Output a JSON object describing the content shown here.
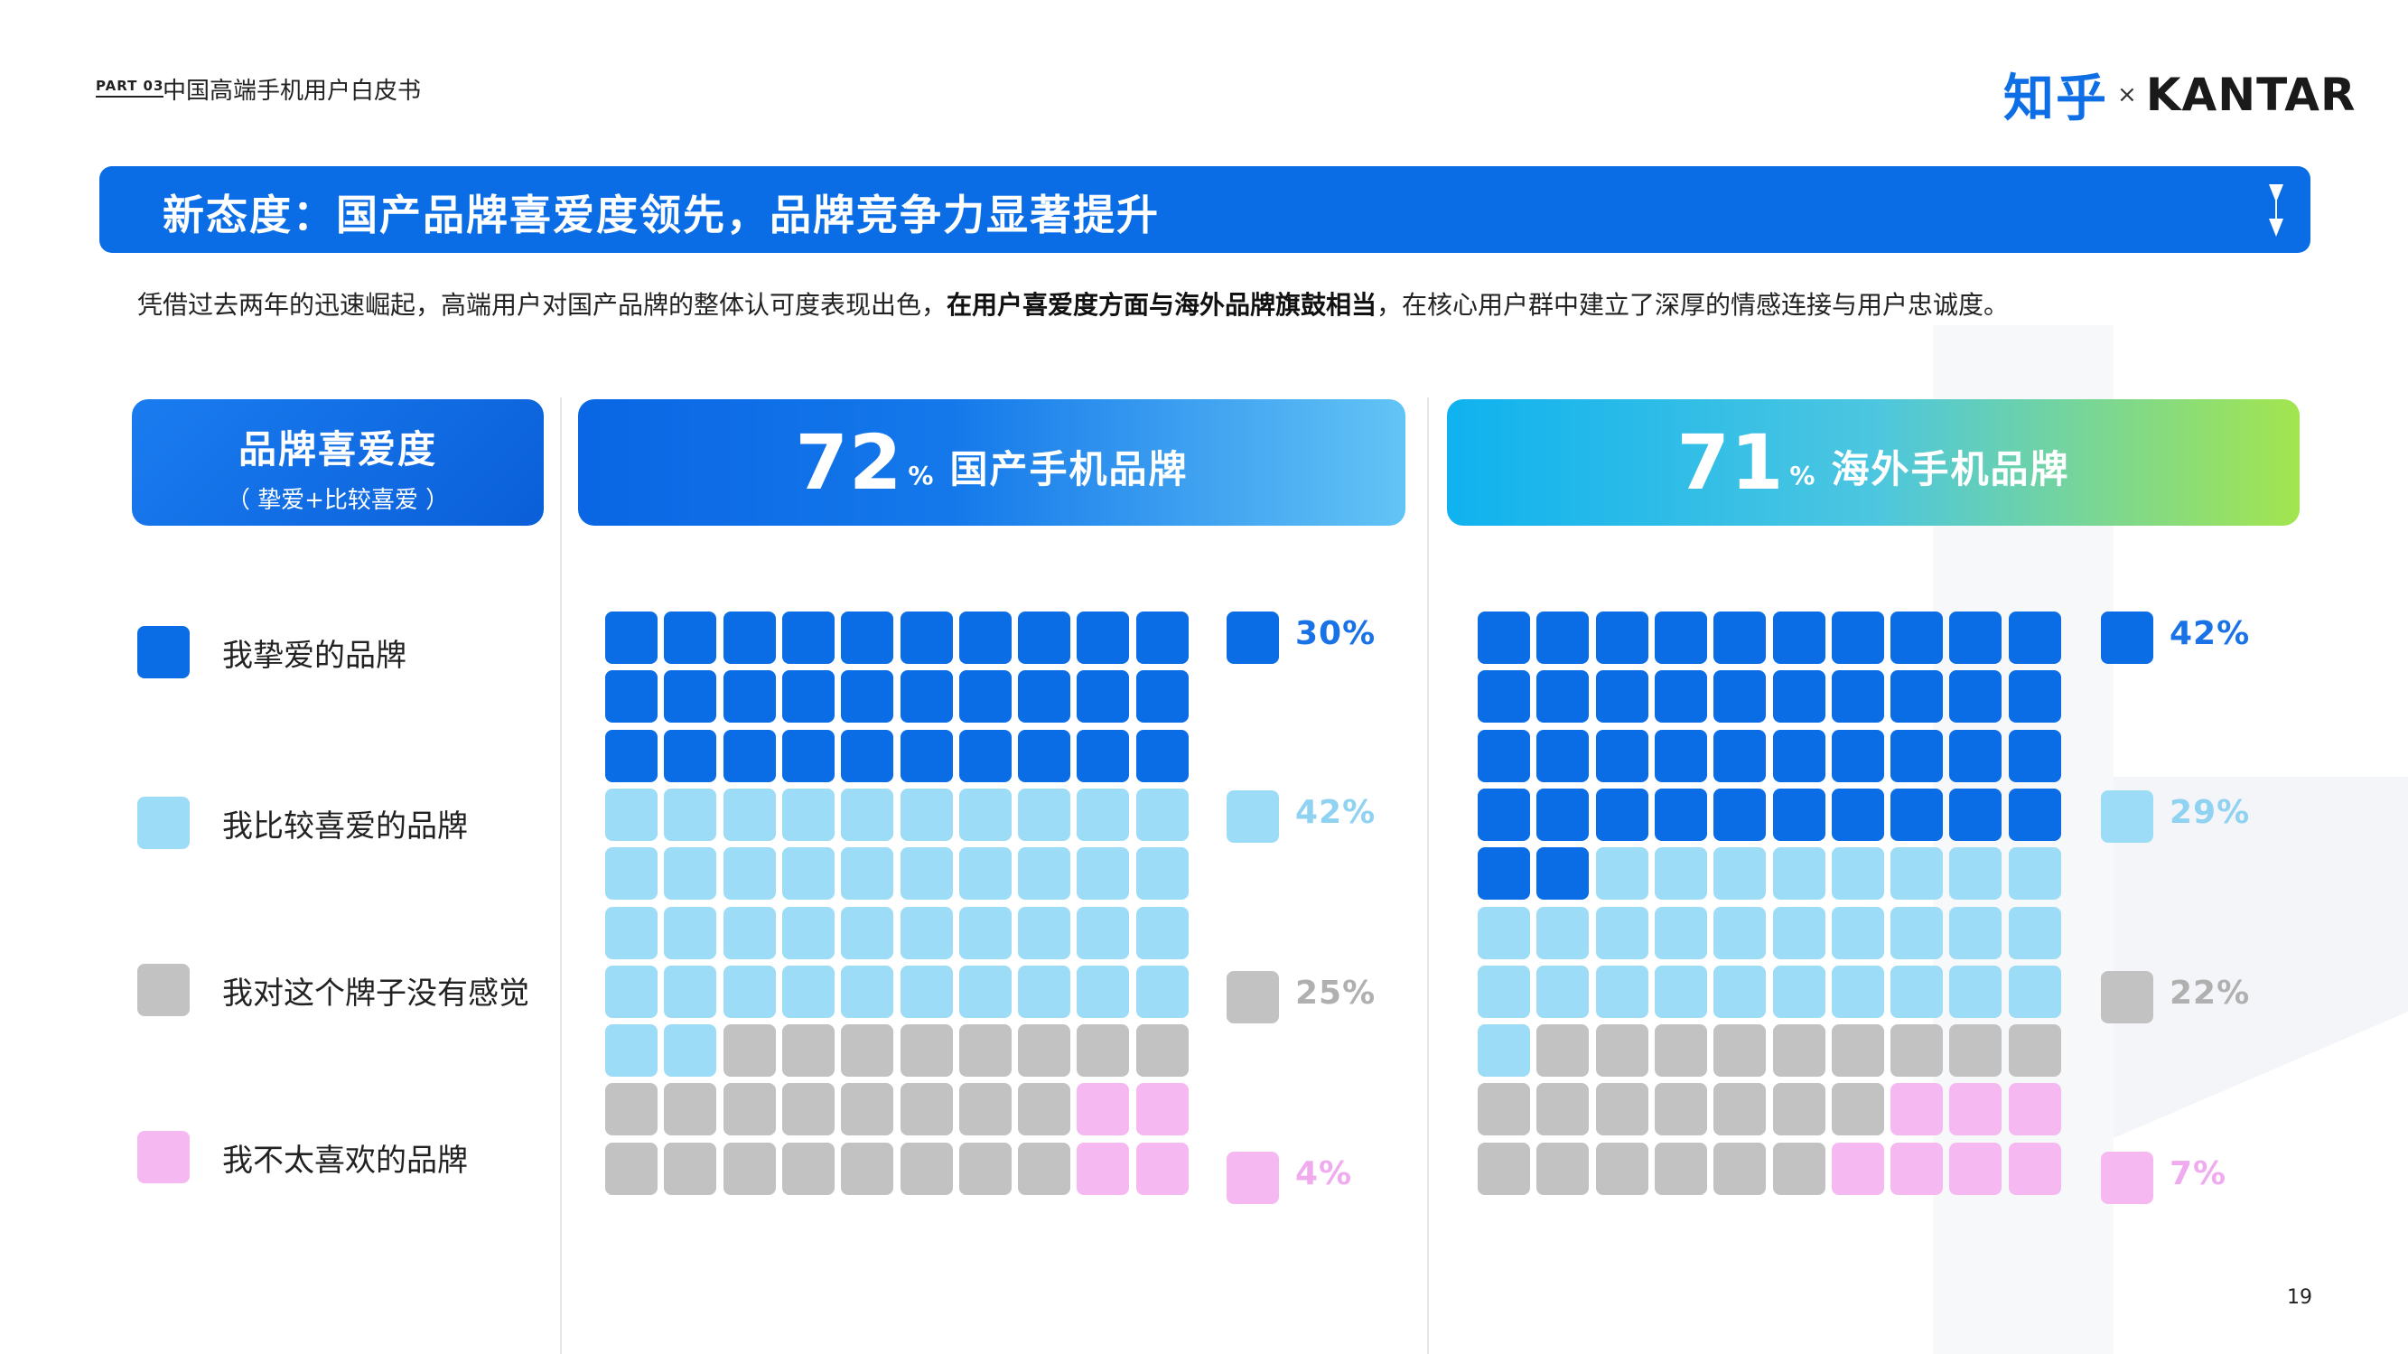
{
  "header": {
    "part": "PART 03",
    "report_name": "中国高端手机用户白皮书",
    "logo_zh": "知乎",
    "logo_x": "×",
    "logo_en": "KANTAR"
  },
  "title": "新态度：国产品牌喜爱度领先，品牌竞争力显著提升",
  "subtitle": {
    "before": "凭借过去两年的迅速崛起，高端用户对国产品牌的整体认可度表现出色，",
    "bold": "在用户喜爱度方面与海外品牌旗鼓相当",
    "after": "，在核心用户群中建立了深厚的情感连接与用户忠诚度。"
  },
  "legend": {
    "title": "品牌喜爱度",
    "subtitle": "（ 挚爱+比较喜爱 ）",
    "items": [
      {
        "label": "我挚爱的品牌",
        "color": "#0a6de6"
      },
      {
        "label": "我比较喜爱的品牌",
        "color": "#9ddcf7"
      },
      {
        "label": "我对这个牌子没有感觉",
        "color": "#c2c2c2"
      },
      {
        "label": "我不太喜欢的品牌",
        "color": "#f6b8f1"
      }
    ]
  },
  "chart_data": [
    {
      "type": "waffle",
      "title": "国产手机品牌",
      "headline_value": 72,
      "headline_unit": "%",
      "grid": {
        "rows": 10,
        "cols": 10
      },
      "categories": [
        "我挚爱的品牌",
        "我比较喜爱的品牌",
        "我对这个牌子没有感觉",
        "我不太喜欢的品牌"
      ],
      "values": [
        30,
        42,
        25,
        4
      ],
      "labels": [
        "30%",
        "42%",
        "25%",
        "4%"
      ]
    },
    {
      "type": "waffle",
      "title": "海外手机品牌",
      "headline_value": 71,
      "headline_unit": "%",
      "grid": {
        "rows": 10,
        "cols": 10
      },
      "categories": [
        "我挚爱的品牌",
        "我比较喜爱的品牌",
        "我对这个牌子没有感觉",
        "我不太喜欢的品牌"
      ],
      "values": [
        42,
        29,
        22,
        7
      ],
      "labels": [
        "42%",
        "29%",
        "22%",
        "7%"
      ]
    }
  ],
  "colors": {
    "love": "#0a6de6",
    "like": "#9ddcf7",
    "neutral": "#c2c2c2",
    "dislike": "#f6b8f1",
    "label_love": "#1a73e6",
    "label_like": "#8fd2f2",
    "label_neutral": "#b0b0b0",
    "label_dislike": "#f0aaee"
  },
  "page_number": "19"
}
